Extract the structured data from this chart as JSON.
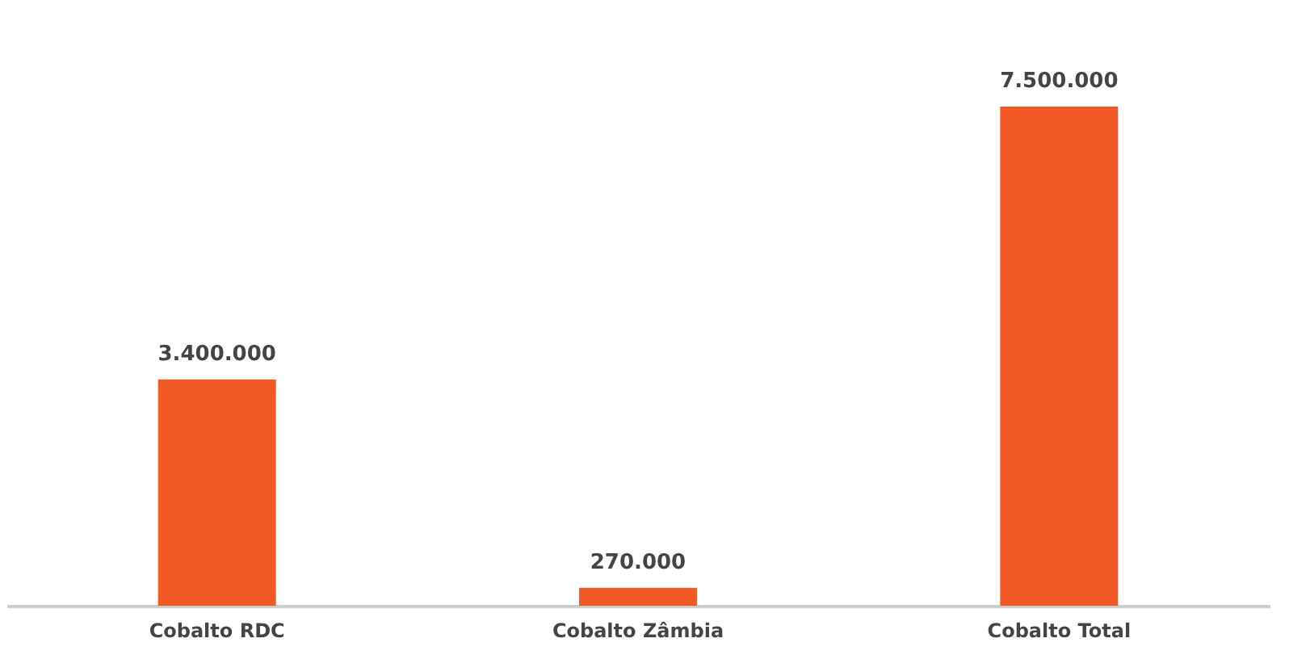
{
  "chart_data": {
    "type": "bar",
    "categories": [
      "Cobalto RDC",
      "Cobalto Zâmbia",
      "Cobalto Total"
    ],
    "values": [
      3400000,
      270000,
      7500000
    ],
    "value_labels": [
      "3.400.000",
      "270.000",
      "7.500.000"
    ],
    "color": "#f15a24",
    "grid": false
  }
}
